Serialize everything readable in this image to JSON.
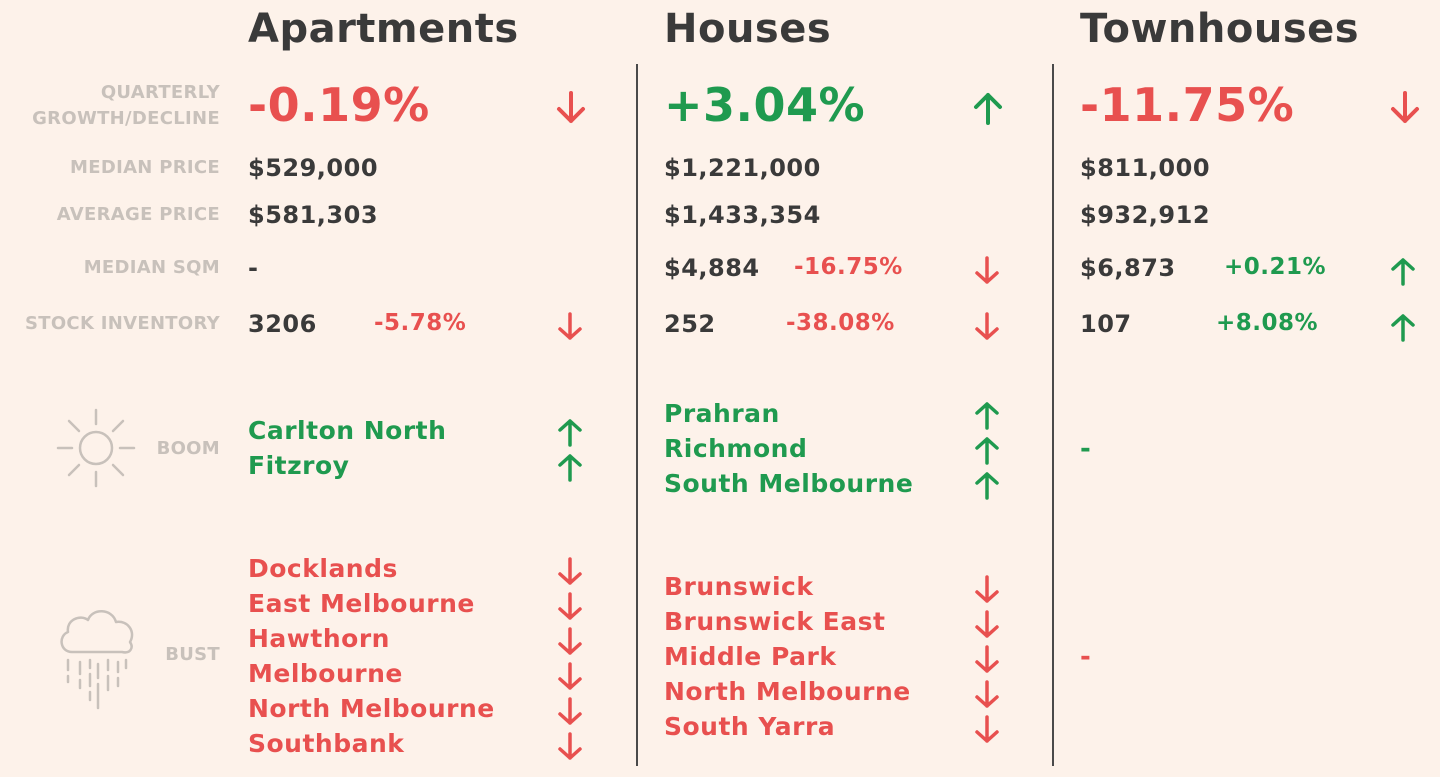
{
  "columns": {
    "apartments": {
      "title": "Apartments",
      "growth": "-0.19%",
      "median_price": "$529,000",
      "average_price": "$581,303",
      "median_sqm": "-",
      "stock_inventory": "3206",
      "stock_change": "-5.78%",
      "boom": [
        "Carlton North",
        "Fitzroy"
      ],
      "bust": [
        "Docklands",
        "East Melbourne",
        "Hawthorn",
        "Melbourne",
        "North Melbourne",
        "Southbank"
      ]
    },
    "houses": {
      "title": "Houses",
      "growth": "+3.04%",
      "median_price": "$1,221,000",
      "average_price": "$1,433,354",
      "median_sqm": "$4,884",
      "median_sqm_change": "-16.75%",
      "stock_inventory": "252",
      "stock_change": "-38.08%",
      "boom": [
        "Prahran",
        "Richmond",
        "South Melbourne"
      ],
      "bust": [
        "Brunswick",
        "Brunswick East",
        "Middle Park",
        "North Melbourne",
        "South Yarra"
      ]
    },
    "townhouses": {
      "title": "Townhouses",
      "growth": "-11.75%",
      "median_price": "$811,000",
      "average_price": "$932,912",
      "median_sqm": "$6,873",
      "median_sqm_change": "+0.21%",
      "stock_inventory": "107",
      "stock_change": "+8.08%",
      "boom_empty": "-",
      "bust_empty": "-"
    }
  },
  "labels": {
    "growth_line1": "QUARTERLY",
    "growth_line2": "GROWTH/DECLINE",
    "median_price": "MEDIAN PRICE",
    "average_price": "AVERAGE PRICE",
    "median_sqm": "MEDIAN SQM",
    "stock_inventory": "STOCK INVENTORY",
    "boom": "BOOM",
    "bust": "BUST"
  },
  "icons": {
    "boom": "sun-icon",
    "bust": "rain-cloud-icon",
    "up": "arrow-up-icon",
    "down": "arrow-down-icon"
  },
  "colors": {
    "background": "#fdf2ea",
    "red": "#e8504f",
    "green": "#1f9a4f",
    "label_grey": "#c8c1bb",
    "text_dark": "#3a3a3a"
  }
}
